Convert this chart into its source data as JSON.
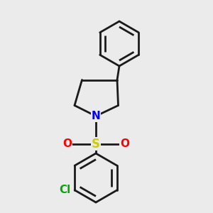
{
  "background_color": "#ebebeb",
  "bond_color": "#1a1a1a",
  "bond_width": 2.0,
  "N_color": "#0000ff",
  "S_color": "#cccc00",
  "O_color": "#ff0000",
  "Cl_color": "#00aa00",
  "figsize": [
    3.0,
    3.0
  ],
  "dpi": 100,
  "xlim": [
    0,
    10
  ],
  "ylim": [
    0,
    10
  ]
}
